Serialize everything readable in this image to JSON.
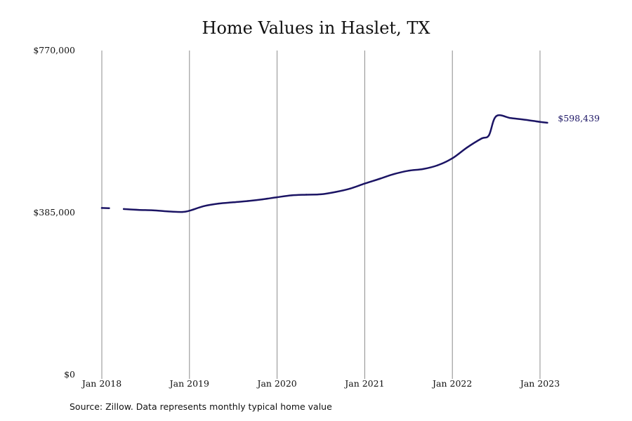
{
  "chart_data": {
    "type": "line",
    "title": "Home Values in Haslet, TX",
    "xlabel": "",
    "ylabel": "",
    "y_ticks": [
      "$0",
      "$385,000",
      "$770,000"
    ],
    "ylim": [
      0,
      770000
    ],
    "x_ticks": [
      "Jan 2018",
      "Jan 2019",
      "Jan 2020",
      "Jan 2021",
      "Jan 2022",
      "Jan 2023"
    ],
    "xlim": [
      "2018-01",
      "2023-02"
    ],
    "grid": "vertical lines at x ticks",
    "line_color": "#1b1464",
    "end_label": "$598,439",
    "series": [
      {
        "segments": [
          [
            [
              "2018-01",
              396000
            ],
            [
              "2018-02",
              395500
            ]
          ],
          [
            [
              "2018-04",
              393500
            ],
            [
              "2018-06",
              391500
            ],
            [
              "2018-08",
              390500
            ],
            [
              "2018-10",
              388000
            ],
            [
              "2018-12",
              386500
            ],
            [
              "2019-01",
              389500
            ],
            [
              "2019-03",
              400500
            ],
            [
              "2019-05",
              406500
            ],
            [
              "2019-07",
              409500
            ],
            [
              "2019-09",
              412500
            ],
            [
              "2019-11",
              416500
            ],
            [
              "2020-01",
              421500
            ],
            [
              "2020-03",
              426000
            ],
            [
              "2020-05",
              427500
            ],
            [
              "2020-07",
              428500
            ],
            [
              "2020-09",
              434000
            ],
            [
              "2020-11",
              442000
            ],
            [
              "2021-01",
              454000
            ],
            [
              "2021-03",
              465000
            ],
            [
              "2021-05",
              476500
            ],
            [
              "2021-07",
              484500
            ],
            [
              "2021-09",
              488500
            ],
            [
              "2021-11",
              497500
            ],
            [
              "2022-01",
              514000
            ],
            [
              "2022-03",
              539500
            ],
            [
              "2022-05",
              561000
            ],
            [
              "2022-06",
              568500
            ],
            [
              "2022-07",
              614000
            ],
            [
              "2022-09",
              609500
            ],
            [
              "2022-11",
              605500
            ],
            [
              "2023-01",
              600500
            ],
            [
              "2023-02",
              598439
            ]
          ]
        ]
      }
    ]
  },
  "source_note": "Source: Zillow. Data represents monthly typical home value"
}
